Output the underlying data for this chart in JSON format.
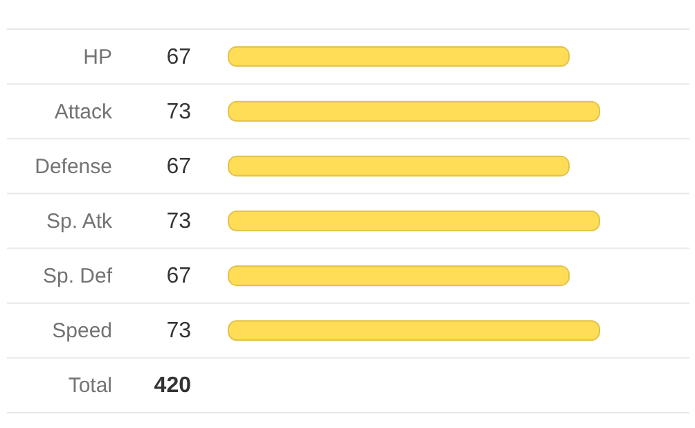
{
  "chart_data": {
    "type": "bar",
    "orientation": "horizontal",
    "categories": [
      "HP",
      "Attack",
      "Defense",
      "Sp. Atk",
      "Sp. Def",
      "Speed"
    ],
    "series": [
      {
        "color": "#ffdd57",
        "values": [
          67,
          73,
          67,
          73,
          67,
          73
        ]
      }
    ],
    "data_labels": true,
    "annotations": [
      "Total",
      "420"
    ]
  }
}
